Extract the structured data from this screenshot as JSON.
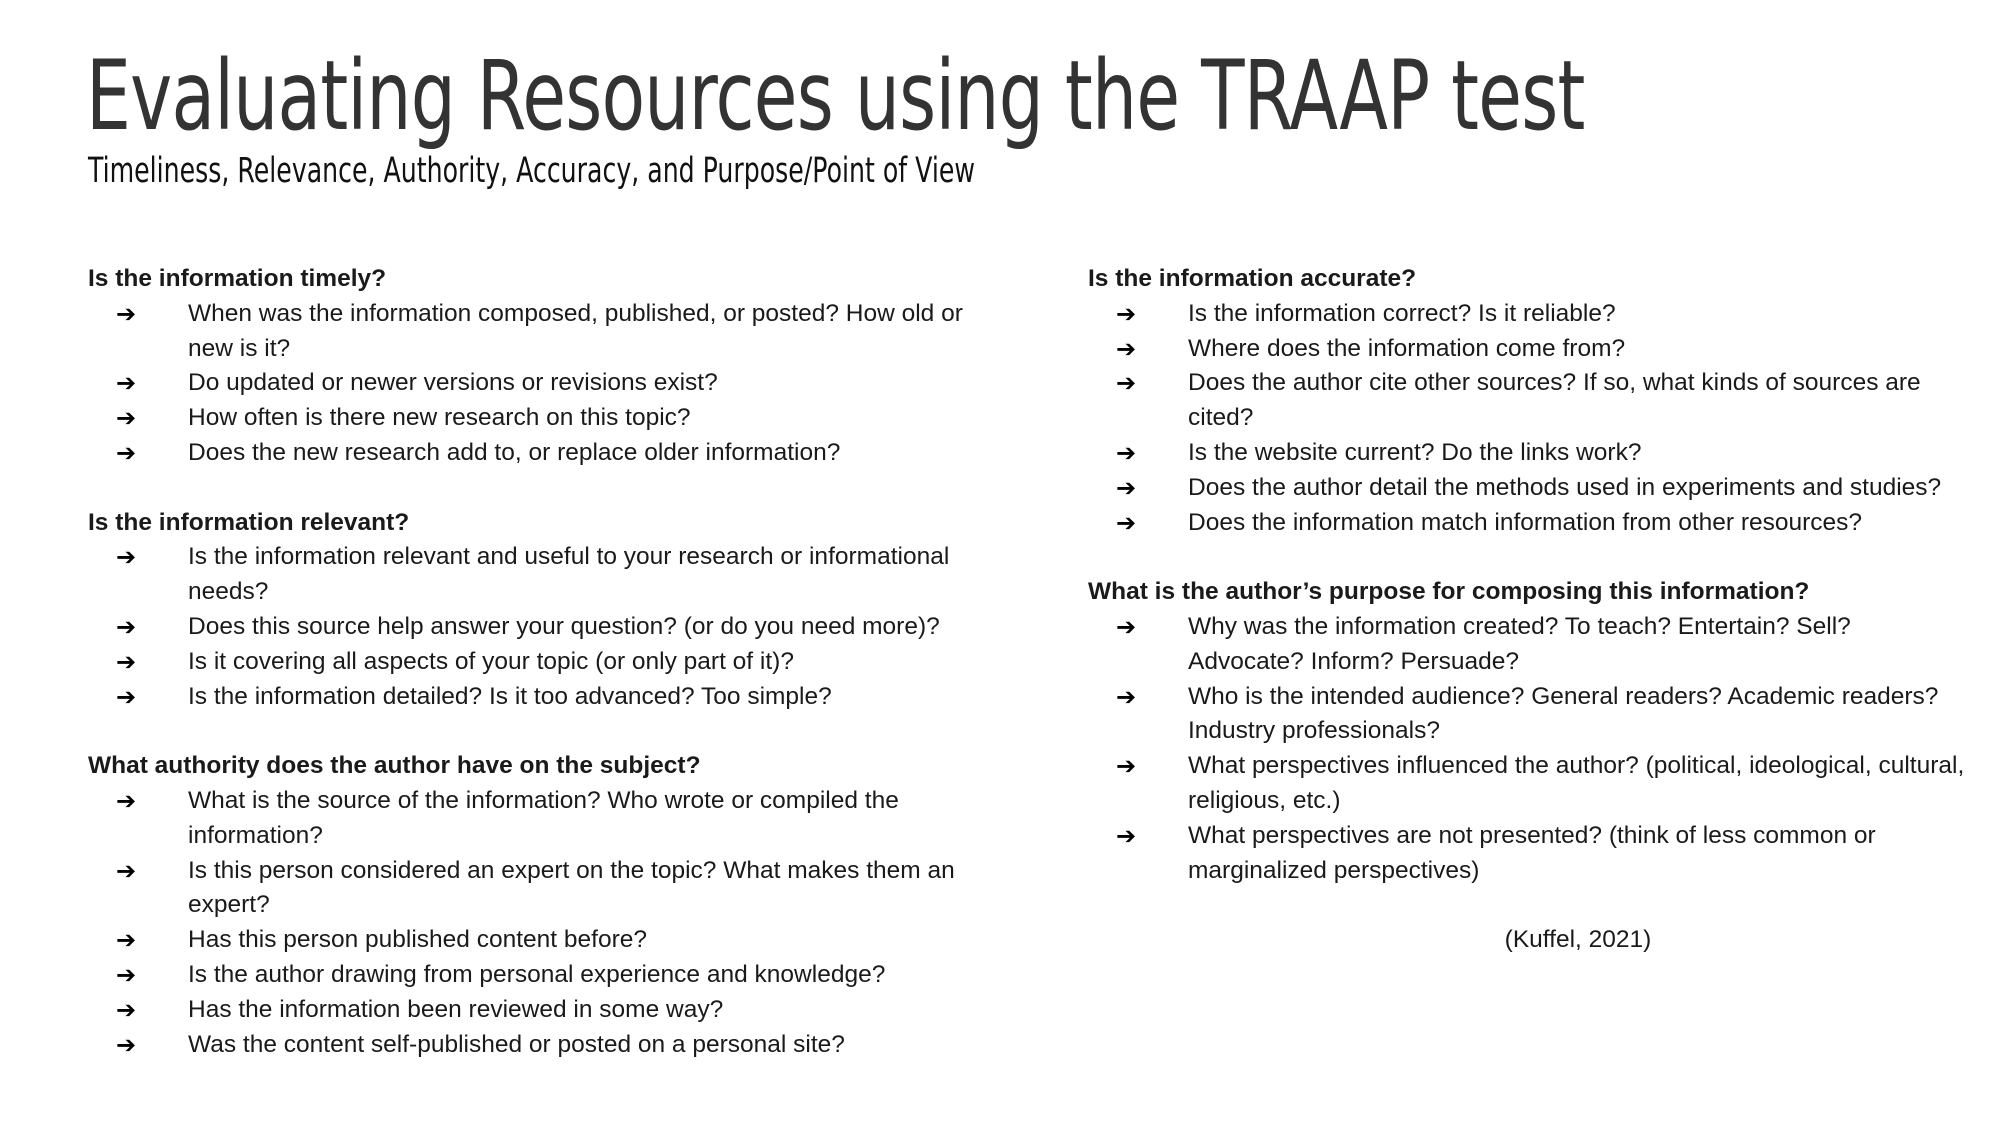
{
  "title": "Evaluating Resources using the TRAAP test",
  "subtitle": "Timeliness, Relevance, Authority, Accuracy, and Purpose/Point of View",
  "bullet_glyph": "➔",
  "left_column": [
    {
      "heading": "Is the information timely?",
      "items": [
        "When was the information composed, published, or posted?  How old or new is it?",
        "Do updated or newer versions or revisions exist?",
        "How often is there new research on this topic?",
        "Does the new research add to, or replace older information?"
      ]
    },
    {
      "heading": "Is the information relevant?",
      "items": [
        "Is the information relevant and useful to your research or informational needs?",
        "Does this source help answer your question?  (or do you need more)?",
        "Is it covering all aspects of your topic (or only part of it)?",
        "Is the information detailed?  Is it too advanced?  Too simple?"
      ]
    },
    {
      "heading": "What authority does the author have on the subject?",
      "items": [
        "What is the source of the information?  Who wrote or compiled the information?",
        "Is this person considered an expert on the topic?  What makes them an expert?",
        "Has this person published content before?",
        "Is the author drawing from personal experience and knowledge?",
        "Has the information been reviewed in some way?",
        "Was the content self-published or posted on a personal site?"
      ]
    }
  ],
  "right_column": [
    {
      "heading": "Is the information accurate?",
      "items": [
        "Is the information correct?  Is it reliable?",
        "Where does the information come from?",
        "Does the author cite other sources?  If so, what kinds of sources are cited?",
        "Is the website current?  Do the links work?",
        "Does the author detail the methods used in experiments and studies?",
        "Does the information match information from other resources?"
      ]
    },
    {
      "heading": "What is the author’s purpose for composing this information?",
      "items": [
        "Why was the information created?  To teach? Entertain? Sell? Advocate? Inform? Persuade?",
        "Who is the intended audience?  General readers?  Academic readers?  Industry professionals?",
        "What perspectives influenced the author? (political, ideological, cultural, religious, etc.)",
        "What perspectives are not presented?  (think of less common or marginalized perspectives)"
      ]
    }
  ],
  "citation": "(Kuffel, 2021)"
}
